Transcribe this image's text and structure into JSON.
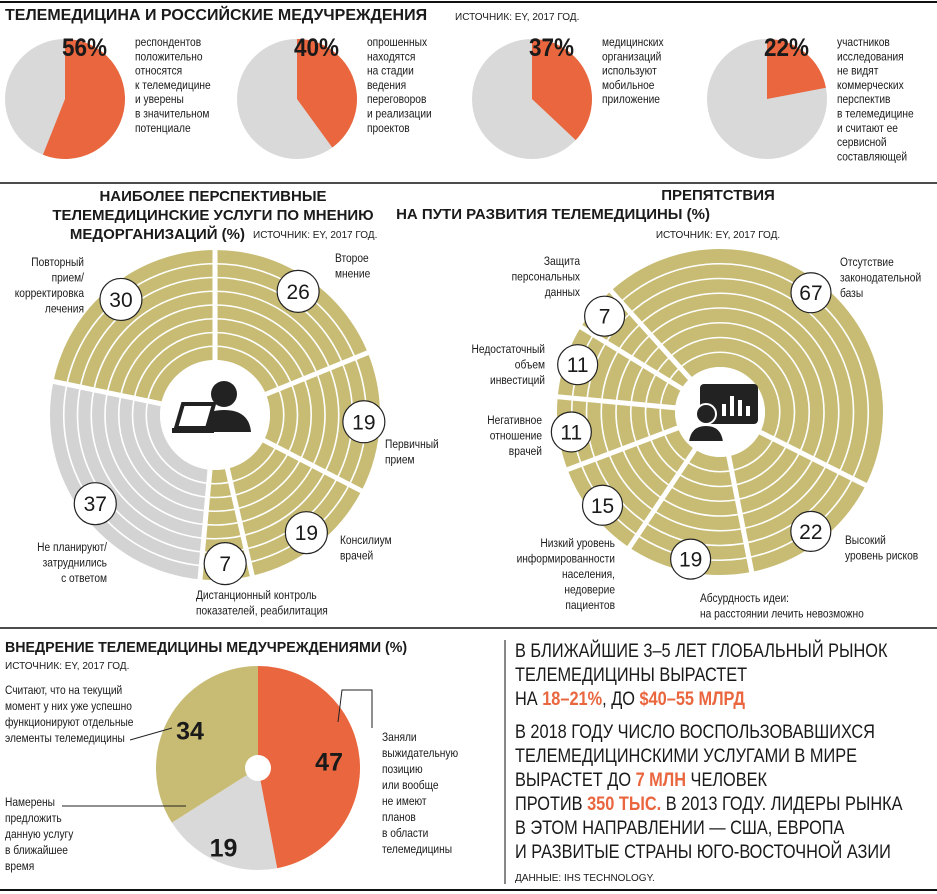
{
  "header": {
    "title": "ТЕЛЕМЕДИЦИНА И РОССИЙСКИЕ МЕДУЧРЕЖДЕНИЯ",
    "source": "ИСТОЧНИК: EY, 2017 ГОД."
  },
  "chart_data": [
    {
      "type": "pie",
      "values": [
        56
      ],
      "value_labels": [
        "56%"
      ],
      "colors": [
        "#e9663e"
      ],
      "rest_color": "#d9d9d9",
      "description": [
        "респондентов",
        "положительно",
        "относятся",
        "к телемедицине",
        "и уверены",
        "в значительном",
        "потенциале"
      ]
    },
    {
      "type": "pie",
      "values": [
        40
      ],
      "value_labels": [
        "40%"
      ],
      "colors": [
        "#e9663e"
      ],
      "rest_color": "#d9d9d9",
      "description": [
        "опрошенных",
        "находятся",
        "на стадии",
        "ведения",
        "переговоров",
        "и реализации",
        "проектов"
      ]
    },
    {
      "type": "pie",
      "values": [
        37
      ],
      "value_labels": [
        "37%"
      ],
      "colors": [
        "#e9663e"
      ],
      "rest_color": "#d9d9d9",
      "description": [
        "медицинских",
        "организаций",
        "используют",
        "мобильное",
        "приложение"
      ]
    },
    {
      "type": "pie",
      "values": [
        22
      ],
      "value_labels": [
        "22%"
      ],
      "colors": [
        "#e9663e"
      ],
      "rest_color": "#d9d9d9",
      "description": [
        "участников",
        "исследования",
        "не видят",
        "коммерческих",
        "перспектив",
        "в телемедицине",
        "и считают ее",
        "сервисной",
        "составляющей"
      ]
    },
    {
      "type": "donut",
      "title": [
        "НАИБОЛЕЕ ПЕРСПЕКТИВНЫЕ",
        "ТЕЛЕМЕДИЦИНСКИЕ УСЛУГИ ПО МНЕНИЮ",
        "МЕДОРГАНИЗАЦИЙ (%)"
      ],
      "source": "ИСТОЧНИК: EY, 2017 ГОД.",
      "categories": [
        [
          "Второе",
          "мнение"
        ],
        [
          "Первичный",
          "прием"
        ],
        [
          "Консилиум",
          "врачей"
        ],
        [
          "Дистанционный контроль",
          "показателей, реабилитация"
        ],
        [
          "Не планируют/",
          "затруднились",
          "с ответом"
        ],
        [
          "Повторный",
          "прием/",
          "корректировка",
          "лечения"
        ]
      ],
      "values": [
        26,
        19,
        19,
        7,
        37,
        30
      ],
      "colors": [
        "#c8bc74",
        "#c8bc74",
        "#c8bc74",
        "#c8bc74",
        "#d3d3d3",
        "#c8bc74"
      ]
    },
    {
      "type": "donut",
      "title": [
        "ПРЕПЯТСТВИЯ",
        "НА ПУТИ РАЗВИТИЯ ТЕЛЕМЕДИЦИНЫ (%)"
      ],
      "source": "ИСТОЧНИК: EY, 2017 ГОД.",
      "categories": [
        [
          "Отсутствие",
          "законодательной",
          "базы"
        ],
        [
          "Высокий",
          "уровень рисков"
        ],
        [
          "Абсурдность идеи:",
          "на расстоянии лечить невозможно"
        ],
        [
          "Низкий уровень",
          "информированности",
          "населения,",
          "недоверие",
          "пациентов"
        ],
        [
          "Негативное",
          "отношение",
          "врачей"
        ],
        [
          "Недостаточный",
          "объем",
          "инвестиций"
        ],
        [
          "Защита",
          "персональных",
          "данных"
        ]
      ],
      "values": [
        67,
        22,
        19,
        15,
        11,
        11,
        7
      ],
      "colors": [
        "#c8bc74",
        "#c8bc74",
        "#c8bc74",
        "#c8bc74",
        "#c8bc74",
        "#c8bc74",
        "#c8bc74"
      ]
    },
    {
      "type": "pie",
      "title": "ВНЕДРЕНИЕ ТЕЛЕМЕДИЦИНЫ МЕДУЧРЕЖДЕНИЯМИ (%)",
      "source": "ИСТОЧНИК: EY, 2017 ГОД.",
      "categories": [
        [
          "Заняли",
          "выжидательную",
          "позицию",
          "или вообще",
          "не имеют",
          "планов",
          "в области",
          "телемедицины"
        ],
        [
          "Намерены",
          "предложить",
          "данную услугу",
          "в ближайшее",
          "время"
        ],
        [
          "Считают, что на текущий",
          "момент у них уже успешно",
          "функционируют отдельные",
          "элементы телемедицины"
        ]
      ],
      "values": [
        47,
        19,
        34
      ],
      "colors": [
        "#e9663e",
        "#d9d9d9",
        "#c8bc74"
      ]
    }
  ],
  "facts": {
    "paragraphs": [
      [
        [
          {
            "text": "В БЛИЖАЙШИЕ 3–5 ЛЕТ ГЛОБАЛЬНЫЙ РЫНОК",
            "accent": false
          }
        ],
        [
          {
            "text": "ТЕЛЕМЕДИЦИНЫ ВЫРАСТЕТ",
            "accent": false
          }
        ],
        [
          {
            "text": "НА ",
            "accent": false
          },
          {
            "text": "18–21%",
            "accent": true
          },
          {
            "text": ", ДО ",
            "accent": false
          },
          {
            "text": "$40–55 МЛРД",
            "accent": true
          }
        ]
      ],
      [
        [
          {
            "text": "В 2018 ГОДУ ЧИСЛО ВОСПОЛЬЗОВАВШИХСЯ",
            "accent": false
          }
        ],
        [
          {
            "text": "ТЕЛЕМЕДИЦИНСКИМИ УСЛУГАМИ В МИРЕ",
            "accent": false
          }
        ],
        [
          {
            "text": "ВЫРАСТЕТ ДО ",
            "accent": false
          },
          {
            "text": "7 МЛН",
            "accent": true
          },
          {
            "text": " ЧЕЛОВЕК",
            "accent": false
          }
        ],
        [
          {
            "text": "ПРОТИВ ",
            "accent": false
          },
          {
            "text": "350 ТЫС.",
            "accent": true
          },
          {
            "text": " В 2013 ГОДУ. ЛИДЕРЫ РЫНКА",
            "accent": false
          }
        ],
        [
          {
            "text": "В ЭТОМ НАПРАВЛЕНИИ — США, ЕВРОПА",
            "accent": false
          }
        ],
        [
          {
            "text": "И РАЗВИТЫЕ СТРАНЫ ЮГО-ВОСТОЧНОЙ АЗИИ",
            "accent": false
          }
        ]
      ]
    ],
    "source": "ДАННЫЕ: IHS TECHNOLOGY."
  }
}
